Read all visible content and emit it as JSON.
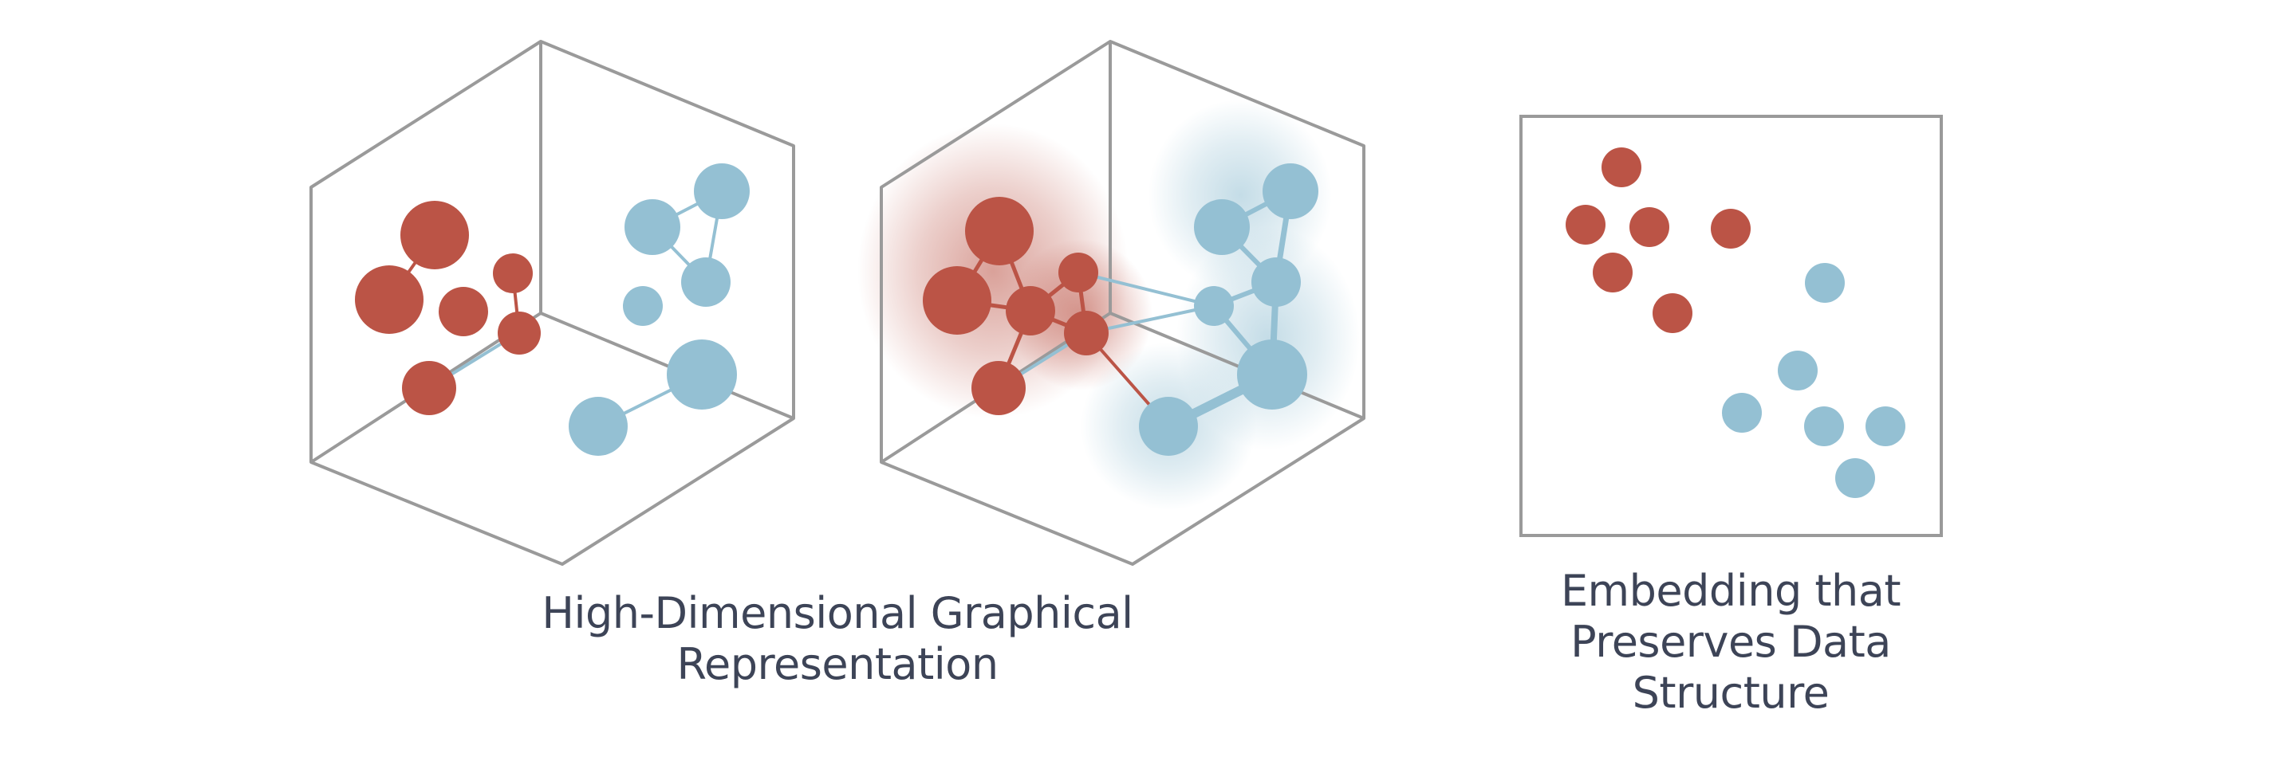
{
  "captions": {
    "left": [
      "High-Dimensional Graphical",
      "Representation"
    ],
    "right": [
      "Embedding that",
      "Preserves Data",
      "Structure"
    ]
  },
  "colors": {
    "red_cluster": "#bb5446",
    "blue_cluster": "#94c0d3",
    "frame_stroke": "#9a9a9a",
    "caption_text": "#3d4457"
  },
  "clusters": [
    "red",
    "blue"
  ]
}
